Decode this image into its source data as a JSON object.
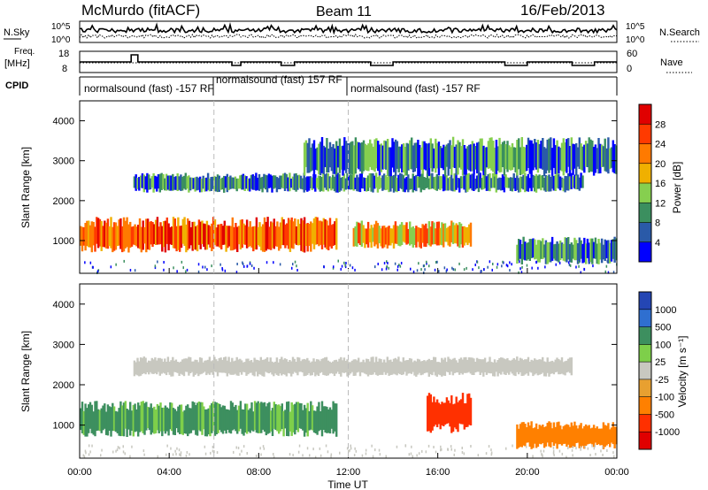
{
  "header": {
    "station": "McMurdo (fitACF)",
    "beam": "Beam 11",
    "date": "16/Feb/2013"
  },
  "noise_panel": {
    "left_label": "N.Sky",
    "right_label": "N.Search",
    "left_ticks": [
      "10^5",
      "10^0"
    ],
    "right_ticks": [
      "10^5",
      "10^0"
    ]
  },
  "freq_panel": {
    "left_label_line1": "Freq.",
    "left_label_line2": "[MHz]",
    "left_ticks": [
      "18",
      "8"
    ],
    "right_ticks": [
      "60",
      "0"
    ],
    "right_label": "Nave"
  },
  "cpid": {
    "label": "CPID",
    "modes": [
      {
        "text": "normalsound (fast) -157 RF",
        "start_h": 0
      },
      {
        "text": "normalsound (fast) 157 RF",
        "start_h": 6
      },
      {
        "text": "normalsound (fast) -157 RF",
        "start_h": 12
      }
    ]
  },
  "chart_data": [
    {
      "type": "heatmap",
      "panel": "power",
      "ylabel": "Slant Range [km]",
      "yticks": [
        1000,
        2000,
        3000,
        4000
      ],
      "ylim": [
        180,
        4500
      ],
      "xlim_hours": [
        0,
        24
      ],
      "colorbar_label": "Power [dB]",
      "colorbar_ticks": [
        "4",
        "8",
        "12",
        "16",
        "20",
        "24",
        "28"
      ],
      "colors": [
        "#0000ff",
        "#2a5aa8",
        "#3b8f5f",
        "#86cf4f",
        "#f0b000",
        "#ff7a00",
        "#ff3a00",
        "#e00000"
      ],
      "features": [
        {
          "range_km": [
            700,
            1600
          ],
          "hours": [
            0,
            11.5
          ],
          "level": 6
        },
        {
          "range_km": [
            800,
            1500
          ],
          "hours": [
            12.2,
            17.5
          ],
          "level": 5
        },
        {
          "range_km": [
            2200,
            2700
          ],
          "hours": [
            2.4,
            22.5
          ],
          "level": 2
        },
        {
          "range_km": [
            2600,
            3600
          ],
          "hours": [
            10,
            24
          ],
          "level": 2
        },
        {
          "range_km": [
            400,
            1100
          ],
          "hours": [
            19.5,
            24
          ],
          "level": 2
        }
      ]
    },
    {
      "type": "heatmap",
      "panel": "velocity",
      "ylabel": "Slant Range [km]",
      "yticks": [
        1000,
        2000,
        3000,
        4000
      ],
      "ylim": [
        180,
        4500
      ],
      "xlim_hours": [
        0,
        24
      ],
      "colorbar_label": "Velocity [m s⁻¹]",
      "colorbar_ticks": [
        "1000",
        "500",
        "100",
        "25",
        "-25",
        "-100",
        "-500",
        "-1000"
      ],
      "colors": [
        "#2446b4",
        "#2f6fd0",
        "#3d8f5f",
        "#7ecf4a",
        "#c8c8c0",
        "#e8a030",
        "#ff8000",
        "#ff3000",
        "#e00000"
      ],
      "features": [
        {
          "range_km": [
            700,
            1600
          ],
          "hours": [
            0,
            11.5
          ],
          "velocity": 100
        },
        {
          "range_km": [
            800,
            1800
          ],
          "hours": [
            15.5,
            17.5
          ],
          "velocity": -500
        },
        {
          "range_km": [
            2200,
            2700
          ],
          "hours": [
            2.4,
            22
          ],
          "velocity": 0
        },
        {
          "range_km": [
            400,
            1100
          ],
          "hours": [
            19.5,
            24
          ],
          "velocity": -100
        }
      ]
    }
  ],
  "x_axis": {
    "ticks": [
      "00:00",
      "04:00",
      "08:00",
      "12:00",
      "16:00",
      "20:00",
      "00:00"
    ],
    "label": "Time UT"
  }
}
